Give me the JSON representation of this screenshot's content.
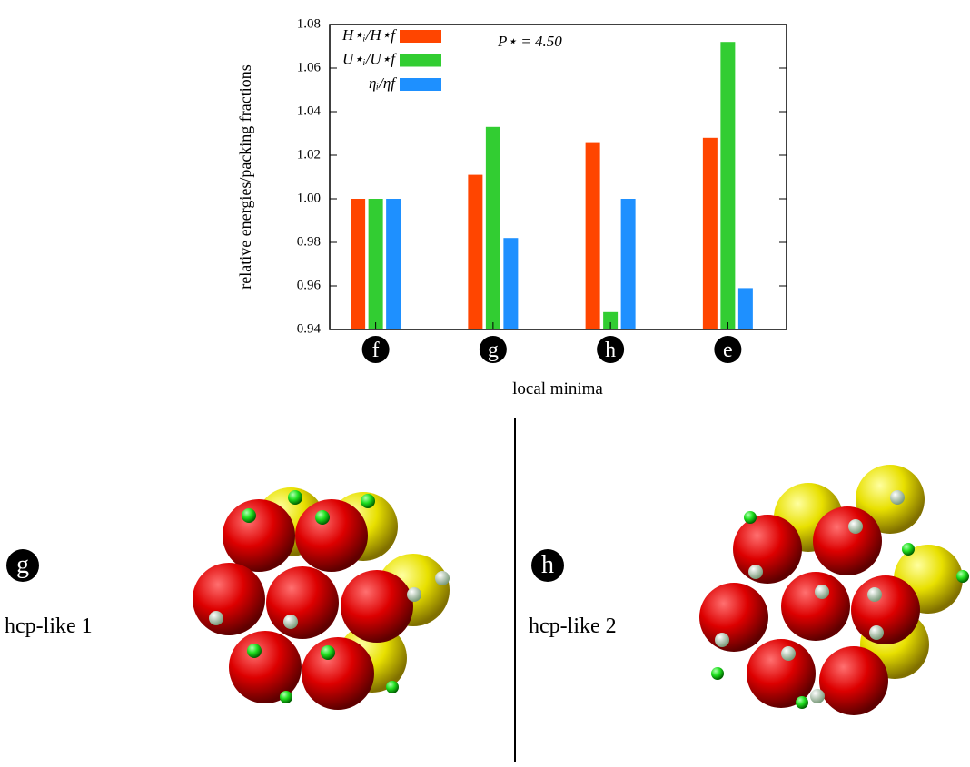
{
  "chart_data": {
    "type": "bar",
    "y_label": "relative energies/packing fractions",
    "x_label": "local minima",
    "annotation": "P⋆ = 4.50",
    "categories": [
      "f",
      "g",
      "h",
      "e"
    ],
    "series": [
      {
        "name": "H⋆ᵢ/H⋆f",
        "color": "#ff4500",
        "values": [
          1.0,
          1.011,
          1.026,
          1.028
        ]
      },
      {
        "name": "U⋆ᵢ/U⋆f",
        "color": "#32cd32",
        "values": [
          1.0,
          1.033,
          0.948,
          1.072
        ]
      },
      {
        "name": "ηᵢ/ηf",
        "color": "#1e90ff",
        "values": [
          1.0,
          0.982,
          1.0,
          0.959
        ]
      }
    ],
    "ylim": [
      0.94,
      1.08
    ],
    "yticks": [
      {
        "value": 0.94,
        "label": "0.94"
      },
      {
        "value": 0.96,
        "label": "0.96"
      },
      {
        "value": 0.98,
        "label": "0.98"
      },
      {
        "value": 1.0,
        "label": "1.00"
      },
      {
        "value": 1.02,
        "label": "1.02"
      },
      {
        "value": 1.04,
        "label": "1.04"
      },
      {
        "value": 1.06,
        "label": "1.06"
      },
      {
        "value": 1.08,
        "label": "1.08"
      }
    ],
    "legend": "upper left"
  },
  "panels": [
    {
      "letter": "g",
      "label": "hcp-like 1"
    },
    {
      "letter": "h",
      "label": "hcp-like 2"
    }
  ]
}
